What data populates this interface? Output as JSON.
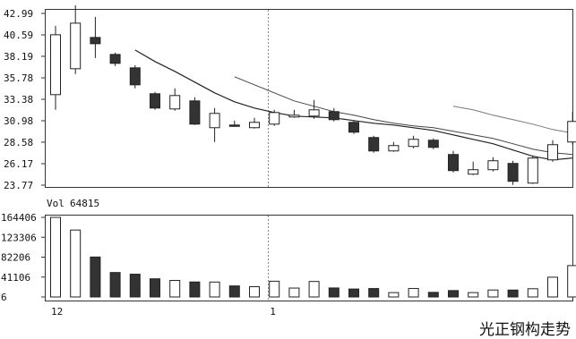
{
  "caption": "光正钢构走势",
  "chart_data": {
    "type": "candlestick",
    "price_axis": {
      "ticks": [
        42.99,
        40.59,
        38.19,
        35.78,
        33.38,
        30.98,
        28.58,
        26.17,
        23.77
      ],
      "ylim": [
        23.77,
        42.99
      ]
    },
    "volume_axis": {
      "label_prefix": "Vol",
      "label_value": "64815",
      "ticks": [
        "164406",
        "123306",
        "82206",
        "41106",
        "6"
      ],
      "tick_values": [
        164406,
        123306,
        82206,
        41106,
        6
      ],
      "ylim": [
        6,
        164406
      ]
    },
    "x_labels": [
      {
        "text": "12",
        "index": 0
      },
      {
        "text": "1",
        "index": 11
      }
    ],
    "candles": [
      {
        "open": 33.9,
        "close": 40.6,
        "high": 41.6,
        "low": 32.2,
        "dir": "up"
      },
      {
        "open": 36.8,
        "close": 41.9,
        "high": 43.9,
        "low": 36.2,
        "dir": "up"
      },
      {
        "open": 40.3,
        "close": 39.6,
        "high": 42.6,
        "low": 38.0,
        "dir": "down"
      },
      {
        "open": 38.4,
        "close": 37.4,
        "high": 38.6,
        "low": 37.1,
        "dir": "down"
      },
      {
        "open": 36.9,
        "close": 35.0,
        "high": 37.2,
        "low": 34.6,
        "dir": "down"
      },
      {
        "open": 34.0,
        "close": 32.4,
        "high": 34.2,
        "low": 32.2,
        "dir": "down"
      },
      {
        "open": 32.3,
        "close": 33.8,
        "high": 34.6,
        "low": 32.1,
        "dir": "up"
      },
      {
        "open": 33.2,
        "close": 30.6,
        "high": 33.6,
        "low": 30.5,
        "dir": "down"
      },
      {
        "open": 30.2,
        "close": 31.8,
        "high": 32.4,
        "low": 28.6,
        "dir": "up"
      },
      {
        "open": 30.5,
        "close": 30.4,
        "high": 31.0,
        "low": 30.3,
        "dir": "down"
      },
      {
        "open": 30.2,
        "close": 30.8,
        "high": 31.3,
        "low": 30.1,
        "dir": "up"
      },
      {
        "open": 30.6,
        "close": 31.9,
        "high": 32.2,
        "low": 30.4,
        "dir": "up"
      },
      {
        "open": 31.4,
        "close": 31.6,
        "high": 32.2,
        "low": 31.3,
        "dir": "up"
      },
      {
        "open": 31.5,
        "close": 32.2,
        "high": 33.3,
        "low": 31.2,
        "dir": "up"
      },
      {
        "open": 32.0,
        "close": 31.1,
        "high": 32.4,
        "low": 30.9,
        "dir": "down"
      },
      {
        "open": 30.8,
        "close": 29.7,
        "high": 31.0,
        "low": 29.5,
        "dir": "down"
      },
      {
        "open": 29.1,
        "close": 27.6,
        "high": 29.3,
        "low": 27.4,
        "dir": "down"
      },
      {
        "open": 27.6,
        "close": 28.2,
        "high": 28.6,
        "low": 27.5,
        "dir": "up"
      },
      {
        "open": 28.1,
        "close": 28.9,
        "high": 29.3,
        "low": 27.9,
        "dir": "up"
      },
      {
        "open": 28.8,
        "close": 28.0,
        "high": 29.0,
        "low": 27.8,
        "dir": "down"
      },
      {
        "open": 27.2,
        "close": 25.4,
        "high": 27.6,
        "low": 25.2,
        "dir": "down"
      },
      {
        "open": 25.0,
        "close": 25.5,
        "high": 26.4,
        "low": 24.9,
        "dir": "up"
      },
      {
        "open": 25.5,
        "close": 26.5,
        "high": 26.9,
        "low": 25.3,
        "dir": "up"
      },
      {
        "open": 26.2,
        "close": 24.2,
        "high": 26.5,
        "low": 23.8,
        "dir": "down"
      },
      {
        "open": 24.0,
        "close": 26.8,
        "high": 27.1,
        "low": 23.9,
        "dir": "up"
      },
      {
        "open": 26.6,
        "close": 28.3,
        "high": 28.8,
        "low": 26.4,
        "dir": "up"
      },
      {
        "open": 28.6,
        "close": 30.9,
        "high": 32.0,
        "low": 28.3,
        "dir": "up"
      }
    ],
    "moving_averages": [
      {
        "values": [
          null,
          null,
          null,
          null,
          38.9,
          37.6,
          36.5,
          35.3,
          34.1,
          33.1,
          32.4,
          31.9,
          31.5,
          31.4,
          31.3,
          31.0,
          30.7,
          30.5,
          30.2,
          29.9,
          29.4,
          28.9,
          28.4,
          27.7,
          27.0,
          26.6,
          26.8
        ]
      },
      {
        "values": [
          null,
          null,
          null,
          null,
          null,
          null,
          null,
          null,
          null,
          35.9,
          35.0,
          34.1,
          33.2,
          32.6,
          32.0,
          31.6,
          31.1,
          30.7,
          30.4,
          30.2,
          29.8,
          29.4,
          29.0,
          28.4,
          27.8,
          27.4,
          27.2
        ]
      },
      {
        "values": [
          null,
          null,
          null,
          null,
          null,
          null,
          null,
          null,
          null,
          null,
          null,
          null,
          null,
          null,
          null,
          null,
          null,
          null,
          null,
          null,
          32.6,
          32.2,
          31.6,
          31.1,
          30.6,
          30.0,
          29.6
        ]
      }
    ],
    "volumes": [
      164406,
      138200,
      82500,
      50500,
      47000,
      37500,
      34200,
      31000,
      30800,
      22800,
      21200,
      32500,
      18400,
      32000,
      18600,
      16400,
      17400,
      9000,
      17500,
      9500,
      13200,
      9000,
      14400,
      14300,
      17000,
      40800,
      64815
    ]
  }
}
